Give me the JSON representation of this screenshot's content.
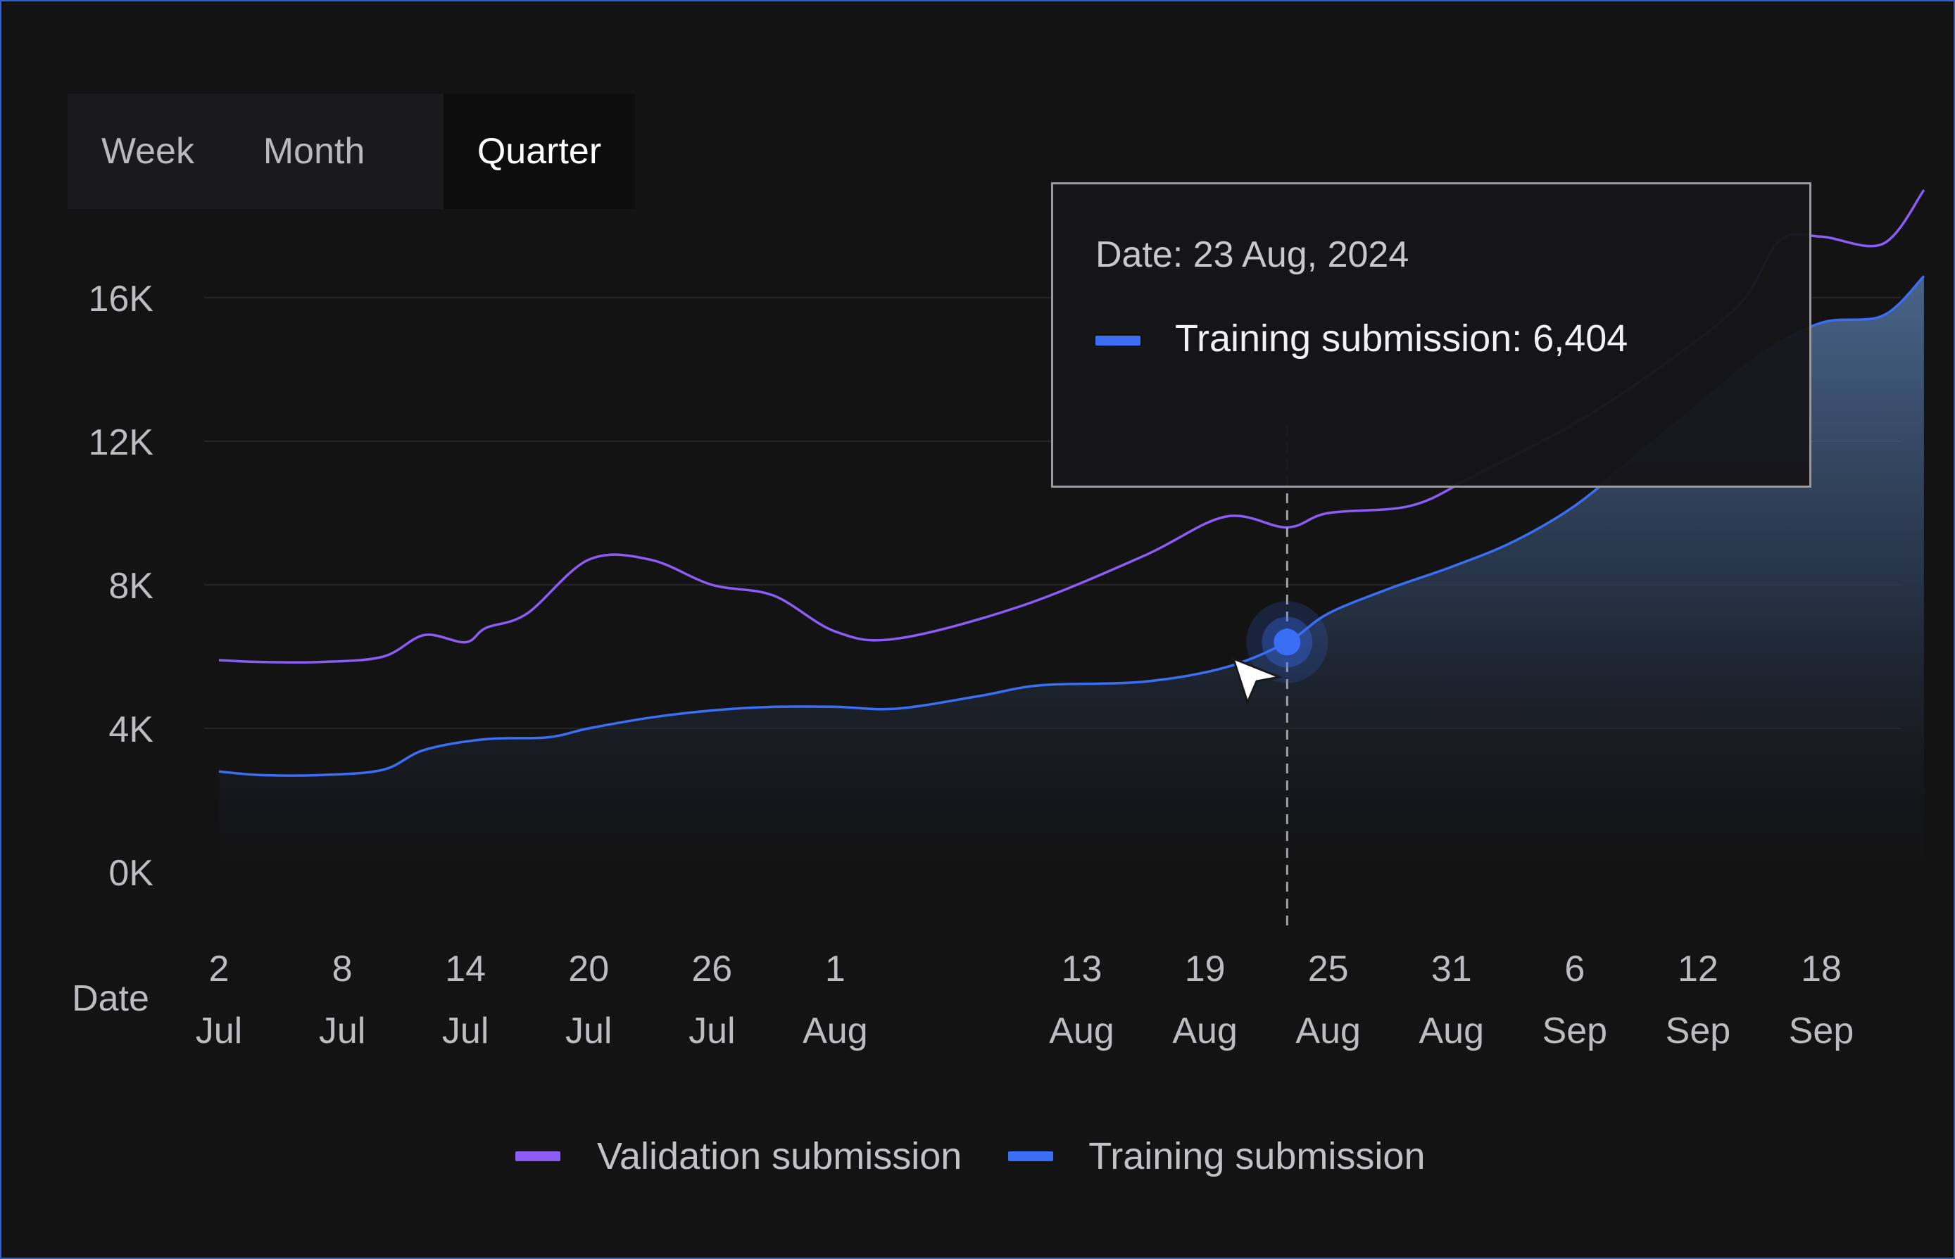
{
  "tabs": {
    "week": "Week",
    "month": "Month",
    "quarter": "Quarter",
    "selected": "Quarter"
  },
  "chart_data": {
    "type": "area",
    "xlabel": "Date",
    "ylim": [
      0,
      16000
    ],
    "y_ticks": [
      "0K",
      "4K",
      "8K",
      "12K",
      "16K"
    ],
    "y_tick_values": [
      0,
      4000,
      8000,
      12000,
      16000
    ],
    "x_ticks": [
      {
        "day": "2",
        "month": "Jul"
      },
      {
        "day": "8",
        "month": "Jul"
      },
      {
        "day": "14",
        "month": "Jul"
      },
      {
        "day": "20",
        "month": "Jul"
      },
      {
        "day": "26",
        "month": "Jul"
      },
      {
        "day": "1",
        "month": "Aug"
      },
      {
        "day": "13",
        "month": "Aug"
      },
      {
        "day": "19",
        "month": "Aug"
      },
      {
        "day": "25",
        "month": "Aug"
      },
      {
        "day": "31",
        "month": "Aug"
      },
      {
        "day": "6",
        "month": "Sep"
      },
      {
        "day": "12",
        "month": "Sep"
      },
      {
        "day": "18",
        "month": "Sep"
      }
    ],
    "series": [
      {
        "name": "Validation submission",
        "color": "#8b5cf6",
        "points": [
          [
            "2 Jul",
            5900
          ],
          [
            "4 Jul",
            5850
          ],
          [
            "7 Jul",
            5850
          ],
          [
            "10 Jul",
            6000
          ],
          [
            "12 Jul",
            6600
          ],
          [
            "14 Jul",
            6400
          ],
          [
            "15 Jul",
            6800
          ],
          [
            "17 Jul",
            7200
          ],
          [
            "20 Jul",
            8700
          ],
          [
            "23 Jul",
            8700
          ],
          [
            "26 Jul",
            8000
          ],
          [
            "29 Jul",
            7700
          ],
          [
            "1 Aug",
            6700
          ],
          [
            "4 Aug",
            6500
          ],
          [
            "10 Aug",
            7400
          ],
          [
            "16 Aug",
            8800
          ],
          [
            "20 Aug",
            9900
          ],
          [
            "23 Aug",
            9600
          ],
          [
            "25 Aug",
            10000
          ],
          [
            "29 Aug",
            10200
          ],
          [
            "1 Sep",
            11000
          ],
          [
            "6 Sep",
            12500
          ],
          [
            "10 Sep",
            14000
          ],
          [
            "14 Sep",
            15800
          ],
          [
            "16 Sep",
            17600
          ],
          [
            "18 Sep",
            17700
          ],
          [
            "21 Sep",
            17500
          ],
          [
            "23 Sep",
            19000
          ]
        ]
      },
      {
        "name": "Training submission",
        "color": "#3a6ff5",
        "points": [
          [
            "2 Jul",
            2800
          ],
          [
            "4 Jul",
            2700
          ],
          [
            "7 Jul",
            2700
          ],
          [
            "10 Jul",
            2850
          ],
          [
            "12 Jul",
            3400
          ],
          [
            "15 Jul",
            3700
          ],
          [
            "18 Jul",
            3750
          ],
          [
            "20 Jul",
            4000
          ],
          [
            "23 Jul",
            4300
          ],
          [
            "26 Jul",
            4500
          ],
          [
            "29 Jul",
            4600
          ],
          [
            "1 Aug",
            4600
          ],
          [
            "4 Aug",
            4550
          ],
          [
            "8 Aug",
            4900
          ],
          [
            "11 Aug",
            5200
          ],
          [
            "16 Aug",
            5300
          ],
          [
            "20 Aug",
            5700
          ],
          [
            "23 Aug",
            6404
          ],
          [
            "25 Aug",
            7200
          ],
          [
            "28 Aug",
            7900
          ],
          [
            "31 Aug",
            8500
          ],
          [
            "3 Sep",
            9200
          ],
          [
            "6 Sep",
            10200
          ],
          [
            "9 Sep",
            11600
          ],
          [
            "12 Sep",
            13000
          ],
          [
            "15 Sep",
            14400
          ],
          [
            "18 Sep",
            15300
          ],
          [
            "21 Sep",
            15500
          ],
          [
            "23 Sep",
            16600
          ]
        ]
      }
    ],
    "tooltip": {
      "date_text": "Date: 23 Aug, 2024",
      "series_text": "Training submission: 6,404",
      "series_color": "#3a6ff5",
      "date": "23 Aug",
      "value": 6404
    },
    "legend_position": "bottom",
    "grid": true
  }
}
